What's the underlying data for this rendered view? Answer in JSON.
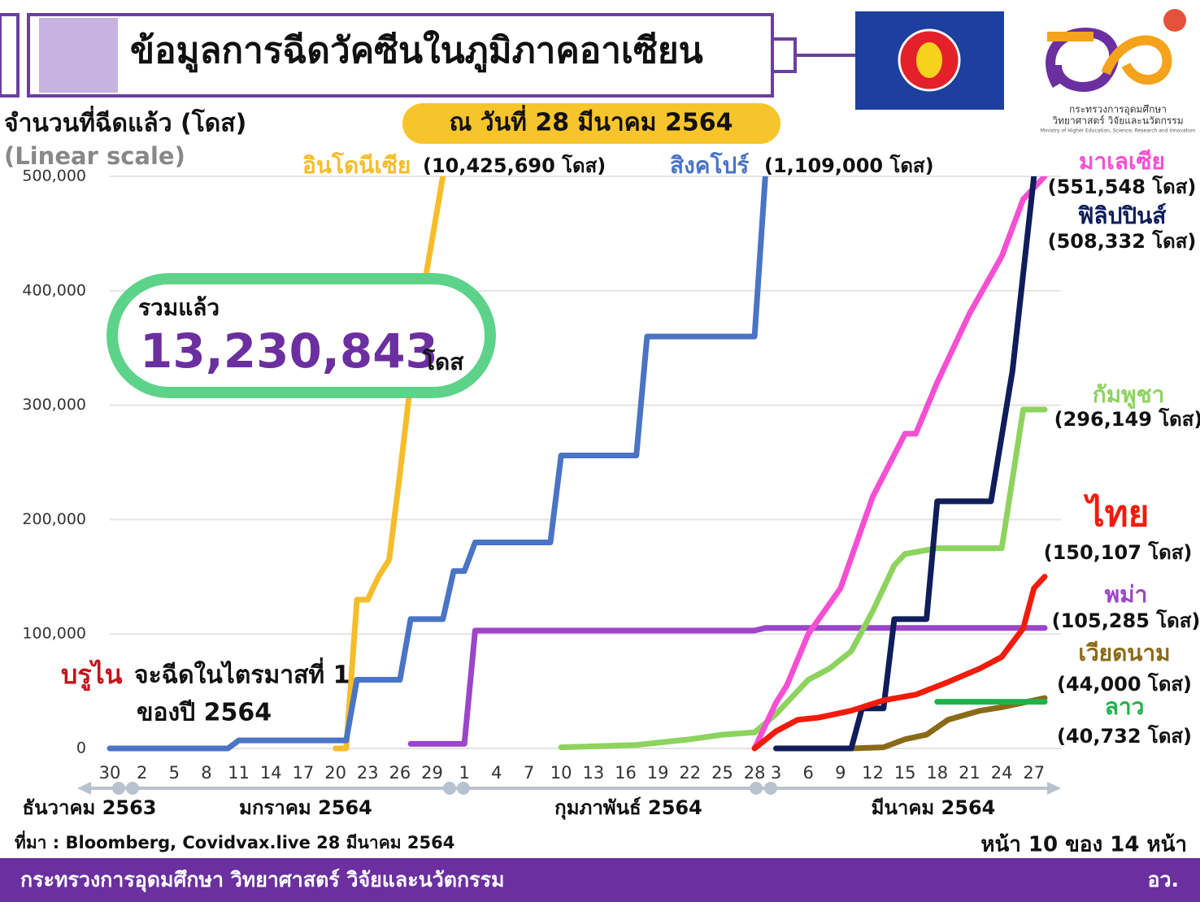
{
  "header": {
    "title": "ข้อมูลการฉีดวัคซีนในภูมิภาคอาเซียน",
    "date": "ณ วันที่ 28 มีนาคม  2564",
    "org_line1": "กระทรวงการอุดมศึกษา",
    "org_line2": "วิทยาศาสตร์ วิจัยและนวัตกรรม",
    "org_line3": "Ministry of Higher Education, Science, Research and Innovation"
  },
  "chart_data": {
    "type": "line",
    "y_label": "จำนวนที่ฉีดแล้ว (โดส)",
    "scale_note": "(Linear scale)",
    "total_title": "รวมแล้ว",
    "total_value": "13,230,843",
    "total_unit": "โดส",
    "brunei_name": "บรูไน",
    "brunei_note_1": "จะฉีดในไตรมาสที่ 1",
    "brunei_note_2": "ของปี 2564",
    "grid": true,
    "xlim": [
      0,
      87
    ],
    "ylim": [
      0,
      500000
    ],
    "yticks": [
      0,
      {
        "value": 100000,
        "label": "100,000"
      },
      {
        "value": 200000,
        "label": "200,000"
      },
      {
        "value": 300000,
        "label": "300,000"
      },
      {
        "value": 400000,
        "label": "400,000"
      },
      {
        "value": 500000,
        "label": "500,000"
      }
    ],
    "xticks": [
      {
        "value": 0,
        "label": "30"
      },
      {
        "value": 3,
        "label": "2"
      },
      {
        "value": 6,
        "label": "5"
      },
      {
        "value": 9,
        "label": "8"
      },
      {
        "value": 12,
        "label": "11"
      },
      {
        "value": 15,
        "label": "14"
      },
      {
        "value": 18,
        "label": "17"
      },
      {
        "value": 21,
        "label": "20"
      },
      {
        "value": 24,
        "label": "23"
      },
      {
        "value": 27,
        "label": "26"
      },
      {
        "value": 30,
        "label": "29"
      },
      {
        "value": 33,
        "label": "1"
      },
      {
        "value": 36,
        "label": "4"
      },
      {
        "value": 39,
        "label": "7"
      },
      {
        "value": 42,
        "label": "10"
      },
      {
        "value": 45,
        "label": "13"
      },
      {
        "value": 48,
        "label": "16"
      },
      {
        "value": 51,
        "label": "19"
      },
      {
        "value": 54,
        "label": "22"
      },
      {
        "value": 57,
        "label": "25"
      },
      {
        "value": 60,
        "label": "28"
      },
      {
        "value": 62,
        "label": "3"
      },
      {
        "value": 65,
        "label": "6"
      },
      {
        "value": 68,
        "label": "9"
      },
      {
        "value": 71,
        "label": "12"
      },
      {
        "value": 74,
        "label": "15"
      },
      {
        "value": 77,
        "label": "18"
      },
      {
        "value": 80,
        "label": "21"
      },
      {
        "value": 83,
        "label": "24"
      },
      {
        "value": 86,
        "label": "27"
      }
    ],
    "months": [
      "ธันวาคม 2563",
      "มกราคม 2564",
      "กุมภาพันธ์ 2564",
      "มีนาคม 2564"
    ],
    "series": [
      {
        "name": "อินโดนีเซีย",
        "label": "(10,425,690 โดส)",
        "color": "#f5bd2a",
        "x": [
          21,
          22,
          23,
          24,
          25,
          26,
          27,
          28,
          29,
          31
        ],
        "values": [
          0,
          0,
          130000,
          130000,
          150000,
          165000,
          240000,
          320000,
          390000,
          500000
        ]
      },
      {
        "name": "สิงคโปร์",
        "label": "(1,109,000 โดส)",
        "color": "#4a74c4",
        "x": [
          0,
          11,
          12,
          22,
          23,
          27,
          28,
          31,
          32,
          33,
          34,
          41,
          42,
          49,
          50,
          60,
          61
        ],
        "values": [
          0,
          0,
          7000,
          7000,
          60000,
          60000,
          113000,
          113000,
          155000,
          155000,
          180000,
          180000,
          256000,
          256000,
          360000,
          360000,
          500000
        ]
      },
      {
        "name": "พม่า",
        "label": "(105,285 โดส)",
        "color": "#9b45c9",
        "x": [
          28,
          33,
          34,
          60,
          61,
          87
        ],
        "values": [
          4000,
          4000,
          103000,
          103000,
          105285,
          105285
        ]
      },
      {
        "name": "กัมพูชา",
        "label": "(296,149 โดส)",
        "color": "#8dd35e",
        "x": [
          42,
          49,
          54,
          57,
          60,
          62,
          65,
          67,
          69,
          71,
          73,
          74,
          77,
          83,
          85,
          87
        ],
        "values": [
          1000,
          3000,
          8000,
          12000,
          14000,
          30000,
          60000,
          70000,
          85000,
          120000,
          160000,
          170000,
          175000,
          175000,
          296149,
          296149
        ]
      },
      {
        "name": "เวียดนาม",
        "label": "(44,000 โดส)",
        "color": "#8a6a18",
        "x": [
          69,
          72,
          74,
          76,
          78,
          81,
          83,
          87
        ],
        "values": [
          0,
          1000,
          8000,
          12000,
          25000,
          33000,
          36000,
          44000
        ]
      },
      {
        "name": "ลาว",
        "label": "(40,732 โดส)",
        "color": "#1fb24b",
        "x": [
          77,
          87
        ],
        "values": [
          40732,
          40732
        ]
      },
      {
        "name": "มาเลเซีย",
        "label": "(551,548 โดส)",
        "color": "#f54fd3",
        "x": [
          60,
          62,
          63,
          65,
          68,
          71,
          74,
          75,
          77,
          80,
          83,
          85,
          87
        ],
        "values": [
          0,
          40000,
          55000,
          100000,
          140000,
          220000,
          275000,
          275000,
          320000,
          380000,
          430000,
          480000,
          500000
        ]
      },
      {
        "name": "ฟิลิปปินส์",
        "label": "(508,332 โดส)",
        "color": "#0f1d5a",
        "x": [
          62,
          69,
          70,
          72,
          73,
          76,
          77,
          82,
          84,
          86
        ],
        "values": [
          0,
          0,
          35000,
          35000,
          113000,
          113000,
          216000,
          216000,
          330000,
          500000
        ]
      },
      {
        "name": "ไทย",
        "label": "(150,107 โดส)",
        "color": "#f21c0c",
        "x": [
          60,
          62,
          64,
          66,
          69,
          72,
          75,
          78,
          81,
          83,
          85,
          86,
          87
        ],
        "values": [
          0,
          15000,
          25000,
          27000,
          33000,
          42000,
          47000,
          58000,
          70000,
          80000,
          105000,
          140000,
          150107
        ]
      }
    ]
  },
  "footer": {
    "source": "ที่มา : Bloomberg, Covidvax.live 28 มีนาคม 2564",
    "page": "หน้า 10 ของ 14 หน้า",
    "ministry": "กระทรวงการอุดมศึกษา วิทยาศาสตร์ วิจัยและนวัตกรรม",
    "abbr": "อว."
  }
}
